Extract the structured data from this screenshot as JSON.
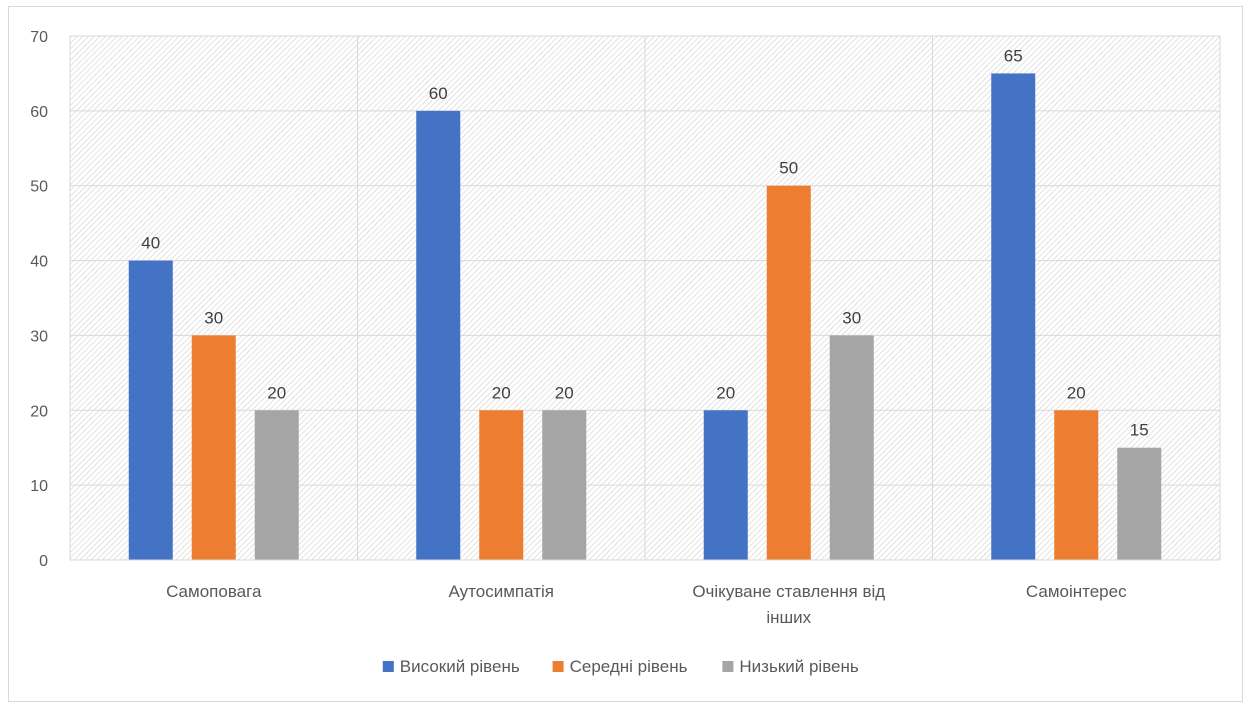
{
  "chart_data": {
    "type": "bar",
    "categories": [
      [
        "Самоповага"
      ],
      [
        "Аутосимпатія"
      ],
      [
        "Очікуване ставлення від",
        "інших"
      ],
      [
        "Самоінтерес"
      ]
    ],
    "series": [
      {
        "name": "Високий рівень",
        "color": "#4472c4",
        "values": [
          40,
          60,
          20,
          65
        ]
      },
      {
        "name": "Середні рівень",
        "color": "#ed7d31",
        "values": [
          30,
          20,
          50,
          20
        ]
      },
      {
        "name": "Низький рівень",
        "color": "#a5a5a5",
        "values": [
          20,
          20,
          30,
          15
        ]
      }
    ],
    "ylim": [
      0,
      70
    ],
    "yticks": [
      0,
      10,
      20,
      30,
      40,
      50,
      60,
      70
    ],
    "grid": true,
    "data_labels": true,
    "legend_position": "bottom"
  }
}
